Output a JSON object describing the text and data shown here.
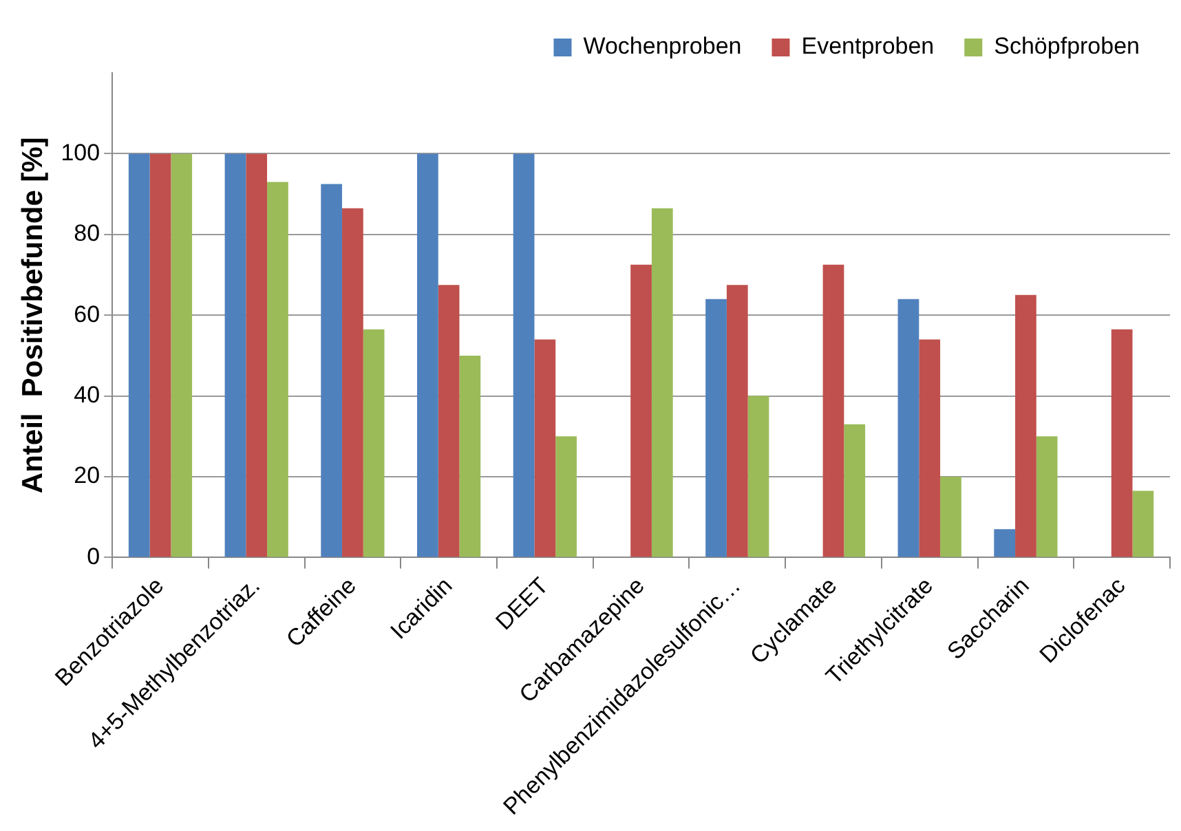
{
  "chart_data": {
    "type": "bar",
    "ylabel": "Anteil  Positivbefunde [%]",
    "categories": [
      "Benzotriazole",
      "4+5-Methylbenzotriaz.",
      "Caffeine",
      "Icaridin",
      "DEET",
      "Carbamazepine",
      "Phenylbenzimidazolesulfonic…",
      "Cyclamate",
      "Triethylcitrate",
      "Saccharin",
      "Diclofenac"
    ],
    "series": [
      {
        "name": "Wochenproben",
        "color": "#4f81bd",
        "values": [
          100,
          100,
          92.5,
          100,
          100,
          0,
          64,
          0,
          64,
          7,
          0
        ]
      },
      {
        "name": "Eventproben",
        "color": "#c0504d",
        "values": [
          100,
          100,
          86.5,
          67.5,
          54,
          72.5,
          67.5,
          72.5,
          54,
          65,
          56.5
        ]
      },
      {
        "name": "Schöpfproben",
        "color": "#9bbb59",
        "values": [
          100,
          93,
          56.5,
          50,
          30,
          86.5,
          40,
          33,
          20,
          30,
          16.5
        ]
      }
    ],
    "ylim": [
      0,
      120
    ],
    "yticks": [
      0,
      20,
      40,
      60,
      80,
      100
    ],
    "grid": "y",
    "legend": "top"
  }
}
